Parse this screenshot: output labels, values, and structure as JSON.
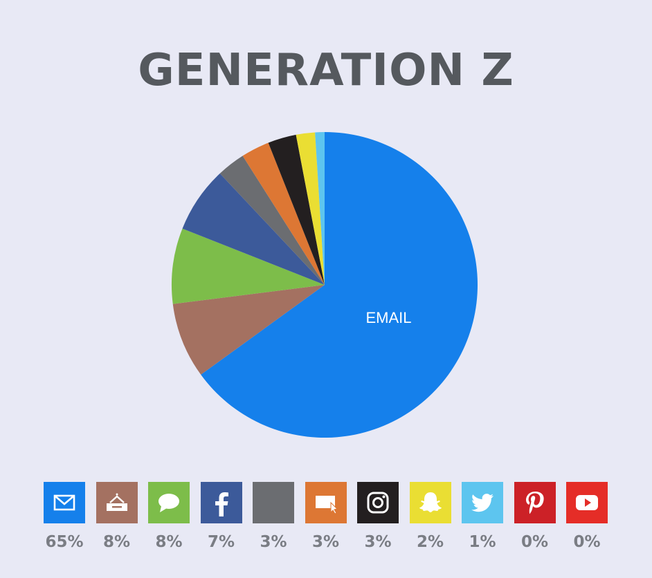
{
  "chart_data": {
    "type": "pie",
    "title": "GENERATION Z",
    "slices": [
      {
        "label": "EMAIL",
        "icon": "email-icon",
        "value": 65,
        "legend_value": "65%",
        "color": "#1580eb"
      },
      {
        "icon": "tray-icon",
        "value": 8,
        "legend_value": "8%",
        "color": "#a47161"
      },
      {
        "icon": "chat-bubble-icon",
        "value": 8,
        "legend_value": "8%",
        "color": "#7dbd4a"
      },
      {
        "icon": "facebook-icon",
        "value": 7,
        "legend_value": "7%",
        "color": "#3c5a9a"
      },
      {
        "icon": "blank-square-icon",
        "value": 3,
        "legend_value": "3%",
        "color": "#6b6d71"
      },
      {
        "icon": "web-click-icon",
        "value": 3,
        "legend_value": "3%",
        "color": "#dd7734"
      },
      {
        "icon": "instagram-icon",
        "value": 3,
        "legend_value": "3%",
        "color": "#231f20"
      },
      {
        "icon": "snapchat-icon",
        "value": 2,
        "legend_value": "2%",
        "color": "#eade33"
      },
      {
        "icon": "twitter-icon",
        "value": 1,
        "legend_value": "1%",
        "color": "#5dc5ef"
      },
      {
        "icon": "pinterest-icon",
        "value": 0,
        "legend_value": "0%",
        "color": "#cc2127"
      },
      {
        "icon": "youtube-icon",
        "value": 0,
        "legend_value": "0%",
        "color": "#e52d27"
      }
    ],
    "legend_placement": "bottom"
  }
}
